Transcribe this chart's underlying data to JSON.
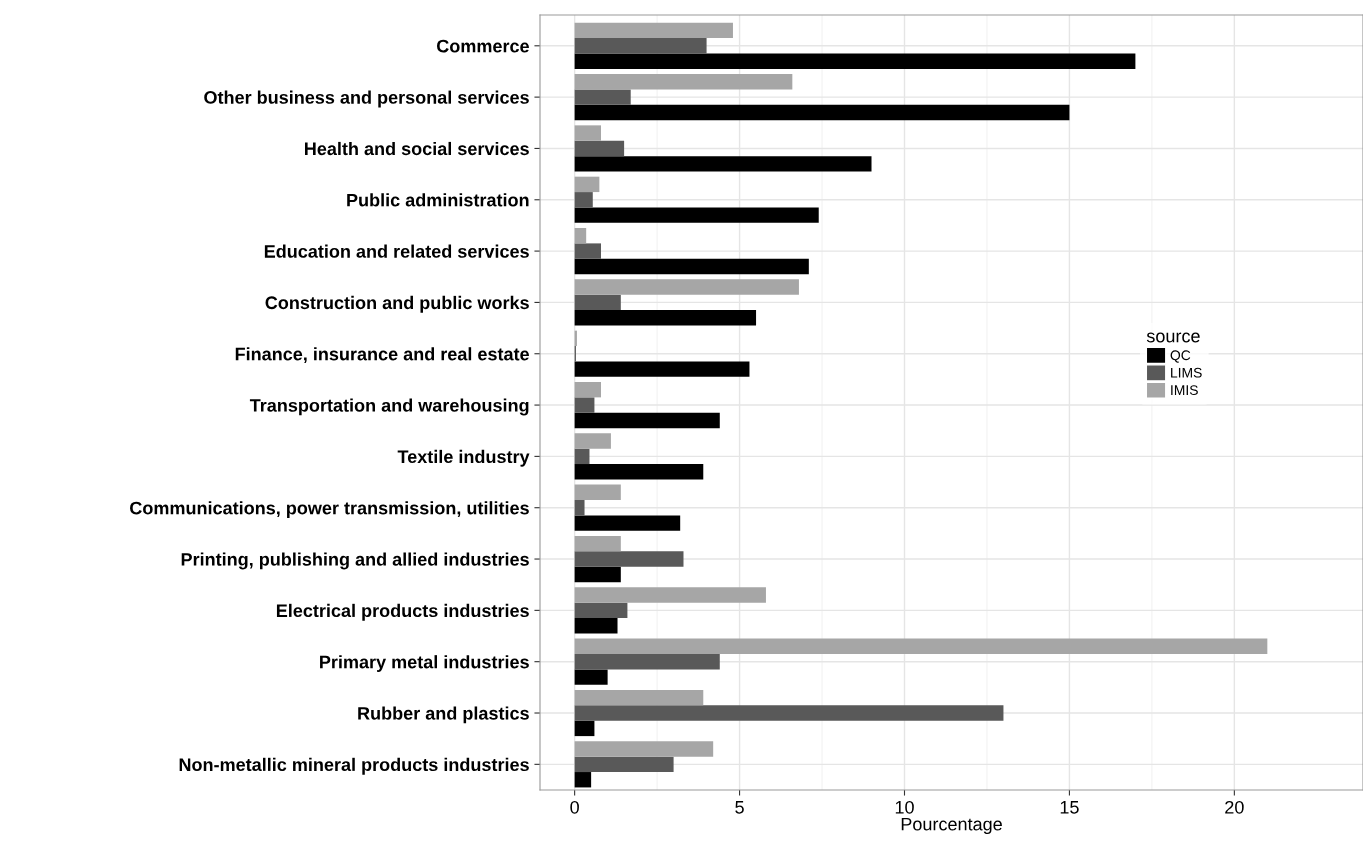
{
  "chart_data": {
    "type": "bar",
    "orientation": "horizontal",
    "xlabel": "Pourcentage",
    "legend_title": "source",
    "legend": "center right",
    "grid": true,
    "categories": [
      "Commerce",
      "Other business and personal services",
      "Health and social services",
      "Public administration",
      "Education and related services",
      "Construction and public works",
      "Finance, insurance and real estate",
      "Transportation and warehousing",
      "Textile industry",
      "Communications, power transmission, utilities",
      "Printing, publishing and allied industries",
      "Electrical products industries",
      "Primary metal industries",
      "Rubber and plastics",
      "Non-metallic mineral products industries"
    ],
    "series": [
      {
        "name": "QC",
        "color": "#000000",
        "values": [
          17.0,
          15.0,
          9.0,
          7.4,
          7.1,
          5.5,
          5.3,
          4.4,
          3.9,
          3.2,
          1.4,
          1.3,
          1.0,
          0.6,
          0.5
        ]
      },
      {
        "name": "LIMS",
        "color": "#595959",
        "values": [
          4.0,
          1.7,
          1.5,
          0.55,
          0.8,
          1.4,
          0.04,
          0.6,
          0.45,
          0.3,
          3.3,
          1.6,
          4.4,
          13.0,
          3.0
        ]
      },
      {
        "name": "IMIS",
        "color": "#a6a6a6",
        "values": [
          4.8,
          6.6,
          0.8,
          0.75,
          0.35,
          6.8,
          0.07,
          0.8,
          1.1,
          1.4,
          1.4,
          5.8,
          21.0,
          3.9,
          4.2
        ]
      }
    ],
    "xlim": [
      -1.05,
      23.9
    ],
    "xticks": [
      0,
      5,
      10,
      15,
      20
    ]
  }
}
